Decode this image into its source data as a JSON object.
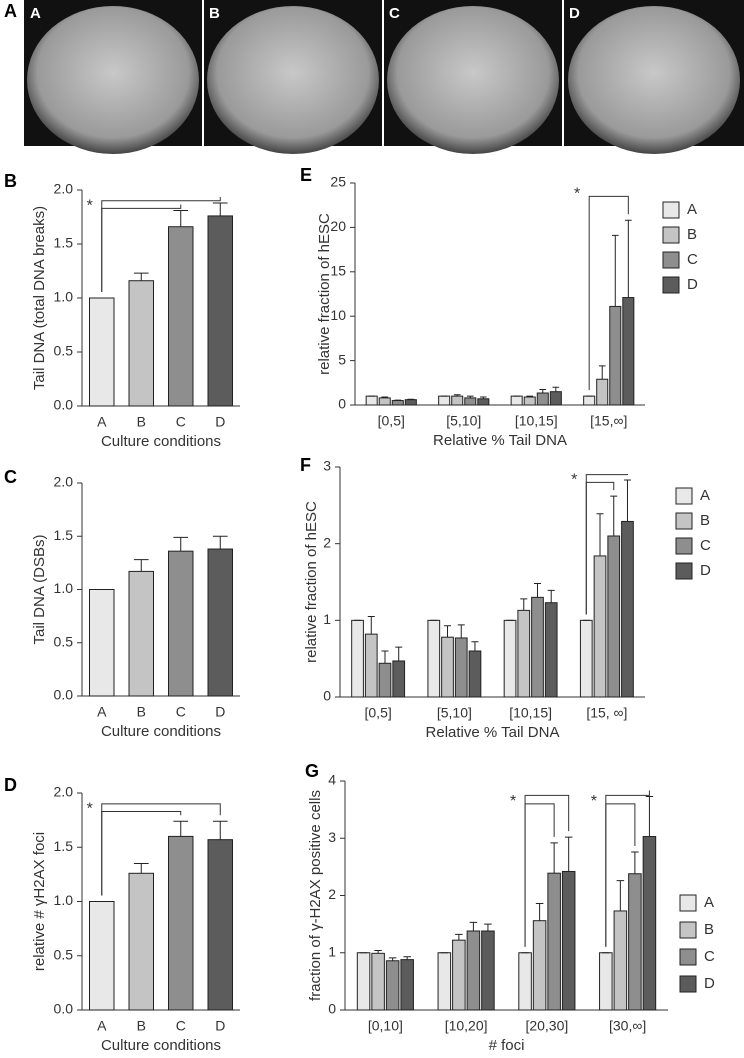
{
  "photos": {
    "panel_label": "A",
    "labels": [
      "A",
      "B",
      "C",
      "D"
    ]
  },
  "chart_data": [
    {
      "type": "bar",
      "panel_label": "B",
      "y_label": "Tail DNA (total DNA breaks)",
      "x_label": "Culture conditions",
      "categories": [
        "A",
        "B",
        "C",
        "D"
      ],
      "values": [
        1.0,
        1.16,
        1.66,
        1.76
      ],
      "errors": [
        0,
        0.07,
        0.15,
        0.12
      ],
      "colors": [
        "#e8e8e8",
        "#c4c4c4",
        "#8e8e8e",
        "#5c5c5c"
      ],
      "ylim": [
        0,
        2
      ],
      "yticks": [
        {
          "value": 0,
          "label": "0.0"
        },
        0.5,
        {
          "value": 1,
          "label": "1.0"
        },
        1.5,
        {
          "value": 2,
          "label": "2.0"
        }
      ],
      "annotation": "*"
    },
    {
      "type": "bar",
      "panel_label": "C",
      "y_label": "Tail DNA (DSBs)",
      "x_label": "Culture conditions",
      "categories": [
        "A",
        "B",
        "C",
        "D"
      ],
      "values": [
        1.0,
        1.17,
        1.36,
        1.38
      ],
      "errors": [
        0,
        0.11,
        0.13,
        0.12
      ],
      "colors": [
        "#e8e8e8",
        "#c4c4c4",
        "#8e8e8e",
        "#5c5c5c"
      ],
      "ylim": [
        0,
        2
      ],
      "yticks": [
        {
          "value": 0,
          "label": "0.0"
        },
        0.5,
        {
          "value": 1,
          "label": "1.0"
        },
        1.5,
        {
          "value": 2,
          "label": "2.0"
        }
      ]
    },
    {
      "type": "bar",
      "panel_label": "D",
      "y_label": "relative # γH2AX foci",
      "x_label": "Culture conditions",
      "categories": [
        "A",
        "B",
        "C",
        "D"
      ],
      "values": [
        1.0,
        1.26,
        1.6,
        1.57
      ],
      "errors": [
        0,
        0.09,
        0.14,
        0.17
      ],
      "colors": [
        "#e8e8e8",
        "#c4c4c4",
        "#8e8e8e",
        "#5c5c5c"
      ],
      "ylim": [
        0,
        2
      ],
      "yticks": [
        {
          "value": 0,
          "label": "0.0"
        },
        0.5,
        {
          "value": 1,
          "label": "1.0"
        },
        1.5,
        {
          "value": 2,
          "label": "2.0"
        }
      ],
      "annotation": "*"
    },
    {
      "type": "bar",
      "panel_label": "E",
      "y_label": "relative fraction of hESC",
      "x_label": "Relative % Tail DNA",
      "categories": [
        "[0,5]",
        "[5,10]",
        "[10,15]",
        "[15,∞]"
      ],
      "series": [
        {
          "name": "A",
          "color": "#e8e8e8",
          "values": [
            1,
            1,
            1,
            1
          ],
          "errors": [
            0,
            0,
            0,
            0
          ]
        },
        {
          "name": "B",
          "color": "#c4c4c4",
          "values": [
            0.8,
            1.0,
            0.9,
            2.9
          ],
          "errors": [
            0.1,
            0.15,
            0.1,
            1.5
          ]
        },
        {
          "name": "C",
          "color": "#8e8e8e",
          "values": [
            0.5,
            0.8,
            1.35,
            11.1
          ],
          "errors": [
            0.05,
            0.2,
            0.4,
            8
          ]
        },
        {
          "name": "D",
          "color": "#5c5c5c",
          "values": [
            0.6,
            0.7,
            1.5,
            12.1
          ],
          "errors": [
            0.05,
            0.2,
            0.5,
            8.7
          ]
        }
      ],
      "ylim": [
        0,
        25
      ],
      "yticks": [
        0,
        5,
        10,
        15,
        20,
        25
      ],
      "annotation": "*"
    },
    {
      "type": "bar",
      "panel_label": "F",
      "y_label": "relative fraction of hESC",
      "x_label": "Relative % Tail DNA",
      "categories": [
        "[0,5]",
        "[5,10]",
        "[10,15]",
        "[15, ∞]"
      ],
      "series": [
        {
          "name": "A",
          "color": "#e8e8e8",
          "values": [
            1,
            1,
            1,
            1
          ],
          "errors": [
            0,
            0,
            0,
            0
          ]
        },
        {
          "name": "B",
          "color": "#c4c4c4",
          "values": [
            0.82,
            0.78,
            1.13,
            1.84
          ],
          "errors": [
            0.23,
            0.15,
            0.15,
            0.55
          ]
        },
        {
          "name": "C",
          "color": "#8e8e8e",
          "values": [
            0.44,
            0.77,
            1.3,
            2.1
          ],
          "errors": [
            0.16,
            0.17,
            0.18,
            0.52
          ]
        },
        {
          "name": "D",
          "color": "#5c5c5c",
          "values": [
            0.47,
            0.6,
            1.23,
            2.29
          ],
          "errors": [
            0.18,
            0.12,
            0.16,
            0.54
          ]
        }
      ],
      "ylim": [
        0,
        3
      ],
      "yticks": [
        0,
        1,
        2,
        3
      ],
      "annotation": "*"
    },
    {
      "type": "bar",
      "panel_label": "G",
      "y_label": "fraction of γ-H2AX positive cells",
      "x_label": "# foci",
      "categories": [
        "[0,10]",
        "[10,20]",
        "[20,30]",
        "[30,∞]"
      ],
      "series": [
        {
          "name": "A",
          "color": "#e8e8e8",
          "values": [
            1,
            1,
            1,
            1
          ],
          "errors": [
            0,
            0,
            0,
            0
          ]
        },
        {
          "name": "B",
          "color": "#c4c4c4",
          "values": [
            0.99,
            1.22,
            1.56,
            1.73
          ],
          "errors": [
            0.05,
            0.1,
            0.3,
            0.53
          ]
        },
        {
          "name": "C",
          "color": "#8e8e8e",
          "values": [
            0.86,
            1.38,
            2.39,
            2.38
          ],
          "errors": [
            0.05,
            0.15,
            0.53,
            0.38
          ]
        },
        {
          "name": "D",
          "color": "#5c5c5c",
          "values": [
            0.88,
            1.38,
            2.42,
            3.03
          ],
          "errors": [
            0.05,
            0.12,
            0.6,
            0.7
          ]
        }
      ],
      "ylim": [
        0,
        4
      ],
      "yticks": [
        0,
        1,
        2,
        3,
        4
      ],
      "annotation": "*"
    }
  ]
}
